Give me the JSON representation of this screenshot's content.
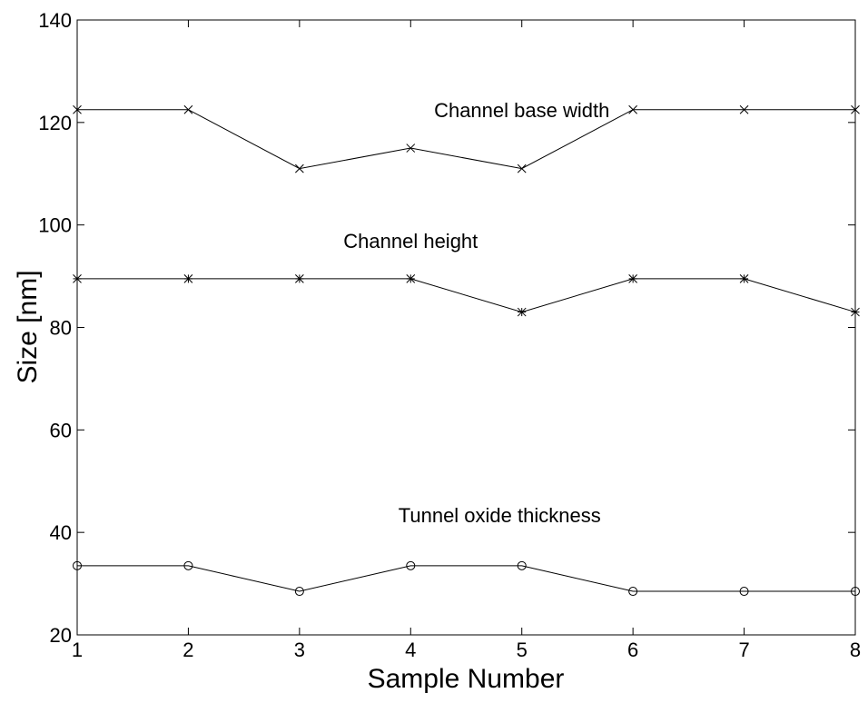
{
  "chart_data": {
    "type": "line",
    "xlabel": "Sample Number",
    "ylabel": "Size [nm]",
    "xlim": [
      1,
      8
    ],
    "ylim": [
      20,
      140
    ],
    "xticks": [
      1,
      2,
      3,
      4,
      5,
      6,
      7,
      8
    ],
    "yticks": [
      20,
      40,
      60,
      80,
      100,
      120,
      140
    ],
    "grid": false,
    "x": [
      1,
      2,
      3,
      4,
      5,
      6,
      7,
      8
    ],
    "series": [
      {
        "marker": "x",
        "values": [
          122.5,
          122.5,
          111,
          115,
          111,
          122.5,
          122.5,
          122.5
        ]
      },
      {
        "marker": "*",
        "values": [
          89.5,
          89.5,
          89.5,
          89.5,
          83,
          89.5,
          89.5,
          83
        ]
      },
      {
        "marker": "o",
        "values": [
          33.5,
          33.5,
          28.5,
          33.5,
          33.5,
          28.5,
          28.5,
          28.5
        ]
      }
    ],
    "annotations": [
      {
        "text": "Channel base width",
        "x": 5.0,
        "y": 121
      },
      {
        "text": "Channel height",
        "x": 4.0,
        "y": 95.5
      },
      {
        "text": "Tunnel oxide thickness",
        "x": 4.8,
        "y": 42
      }
    ]
  }
}
